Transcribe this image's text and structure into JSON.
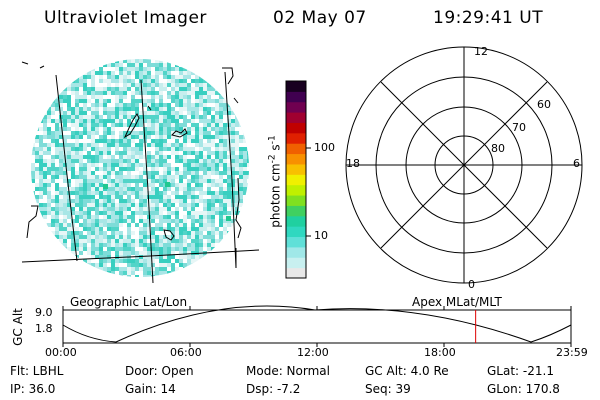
{
  "header": {
    "instrument": "Ultraviolet Imager",
    "date": "02 May 07",
    "time": "19:29:41 UT"
  },
  "geo_panel": {
    "label": "Geographic Lat/Lon"
  },
  "colorbar": {
    "unit_label": "photon cm",
    "unit_sup1": "-2",
    "unit_mid": "s",
    "unit_sup2": "-1",
    "ticks": [
      "100",
      "10"
    ],
    "colors": [
      "#e8e8e8",
      "#c8f0f0",
      "#a0e8e8",
      "#60e0d8",
      "#30d8c0",
      "#20d0a0",
      "#40d060",
      "#80e020",
      "#c0f000",
      "#f0f000",
      "#f8c000",
      "#f89000",
      "#f06000",
      "#e02000",
      "#c00000",
      "#a00030",
      "#700050",
      "#400050",
      "#180020"
    ]
  },
  "polar_plot": {
    "label": "Apex MLat/MLT",
    "mlt_labels": {
      "top": "12",
      "bottom": "0",
      "left": "18",
      "right": "6"
    },
    "lat_labels": [
      "60",
      "70",
      "80"
    ]
  },
  "timeline": {
    "y_axis_title": "GC Alt",
    "y_ticks": [
      "9.0",
      "1.8"
    ],
    "x_ticks": [
      "00:00",
      "06:00",
      "12:00",
      "18:00",
      "23:59"
    ],
    "current_marker_color": "#dd0000",
    "current_time_fraction": 0.8123
  },
  "info": {
    "flt": "Flt: LBHL",
    "ip": "IP: 36.0",
    "door": "Door: Open",
    "gain": "Gain: 14",
    "mode": "Mode: Normal",
    "dsp": "Dsp:    -7.2",
    "gcalt": "GC Alt: 4.0 Re",
    "seq": "Seq: 39",
    "glat": "GLat: -21.1",
    "glon": "GLon: 170.8"
  }
}
